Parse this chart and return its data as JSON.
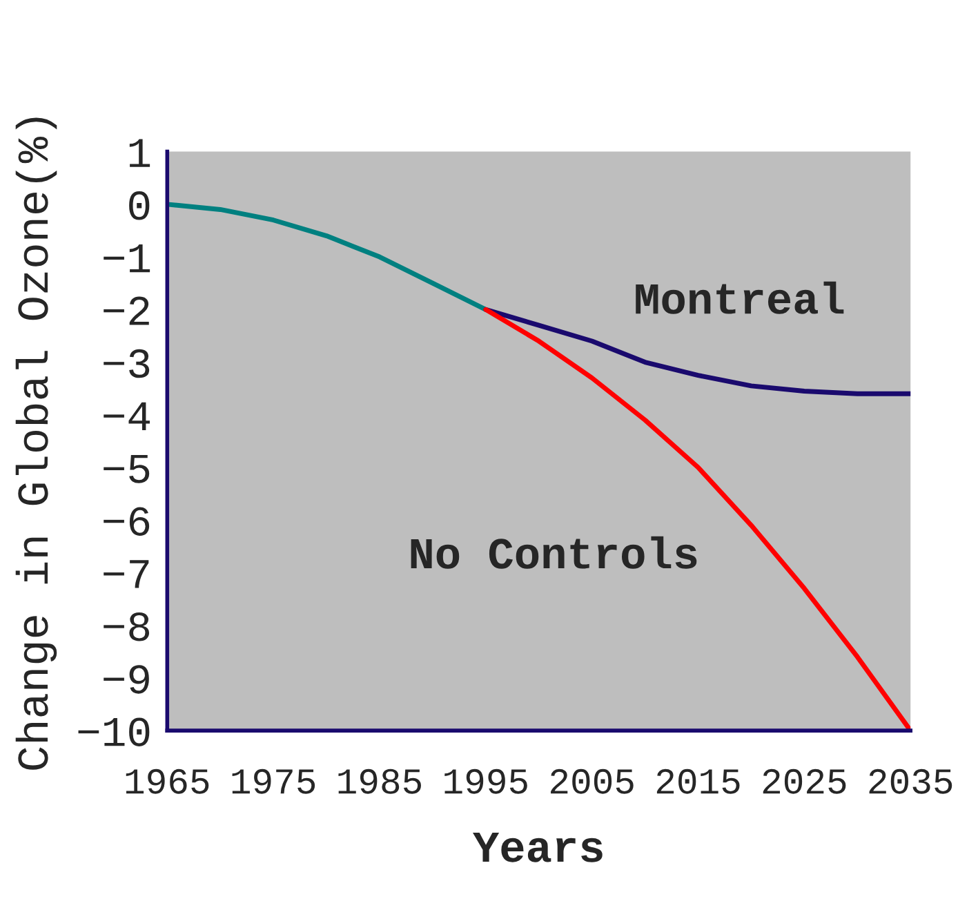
{
  "chart_data": {
    "type": "line",
    "xlabel": "Years",
    "ylabel": "Change in Global Ozone(%)",
    "xlim": [
      1965,
      2035
    ],
    "xticks": [
      1965,
      1975,
      1985,
      1995,
      2005,
      2015,
      2025,
      2035
    ],
    "ylim": [
      -10,
      1
    ],
    "yticks": [
      1,
      0,
      -1,
      -2,
      -3,
      -4,
      -5,
      -6,
      -7,
      -8,
      -9,
      -10
    ],
    "line_style": "solid",
    "series": [
      {
        "color": "#008080",
        "x": [
          1965,
          1970,
          1975,
          1980,
          1985,
          1990,
          1995
        ],
        "values": [
          0,
          -0.1,
          -0.3,
          -0.6,
          -1.0,
          -1.5,
          -2.0
        ]
      },
      {
        "color": "#1a0a6e",
        "x": [
          1995,
          2000,
          2005,
          2010,
          2015,
          2020,
          2025,
          2030,
          2035
        ],
        "values": [
          -2.0,
          -2.3,
          -2.6,
          -3.0,
          -3.25,
          -3.45,
          -3.55,
          -3.6,
          -3.6
        ]
      },
      {
        "color": "#ff0000",
        "x": [
          1995,
          2000,
          2005,
          2010,
          2015,
          2020,
          2025,
          2030,
          2035
        ],
        "values": [
          -2.0,
          -2.6,
          -3.3,
          -4.1,
          -5.0,
          -6.1,
          -7.3,
          -8.6,
          -10.0
        ]
      }
    ],
    "annotations": [
      "Montreal",
      "No Controls"
    ]
  }
}
